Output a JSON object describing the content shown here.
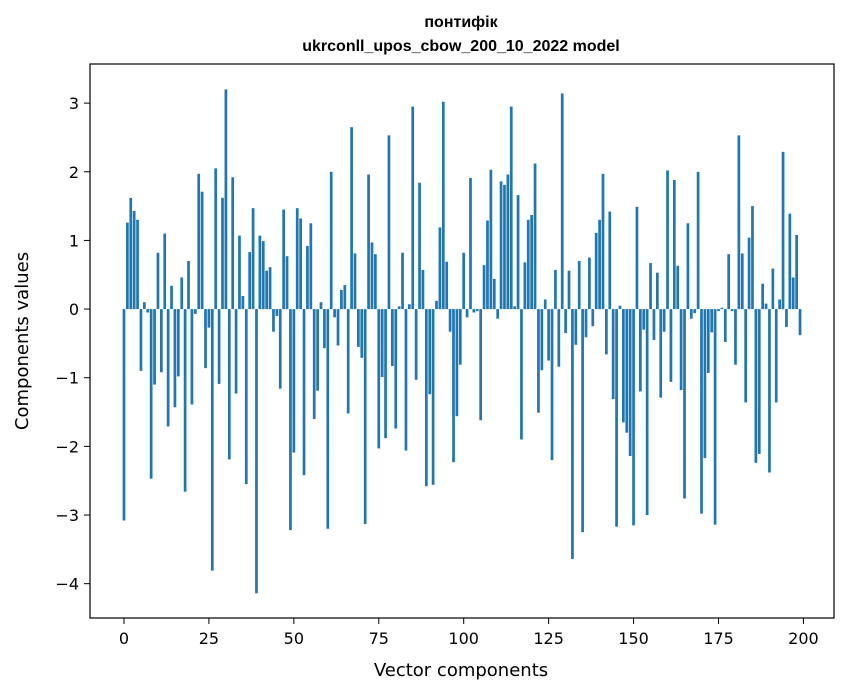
{
  "chart_data": {
    "type": "bar",
    "title": "понтифік",
    "subtitle": "ukrconll_upos_cbow_200_10_2022 model",
    "xlabel": "Vector components",
    "ylabel": "Components values",
    "xlim": [
      -10,
      209
    ],
    "ylim": [
      -4.5,
      3.57
    ],
    "xticks": [
      0,
      25,
      50,
      75,
      100,
      125,
      150,
      175,
      200
    ],
    "yticks": [
      -4,
      -3,
      -2,
      -1,
      0,
      1,
      2,
      3
    ],
    "bar_color": "#1f77b4",
    "grid": false,
    "legend": "none",
    "x": [
      0,
      1,
      2,
      3,
      4,
      5,
      6,
      7,
      8,
      9,
      10,
      11,
      12,
      13,
      14,
      15,
      16,
      17,
      18,
      19,
      20,
      21,
      22,
      23,
      24,
      25,
      26,
      27,
      28,
      29,
      30,
      31,
      32,
      33,
      34,
      35,
      36,
      37,
      38,
      39,
      40,
      41,
      42,
      43,
      44,
      45,
      46,
      47,
      48,
      49,
      50,
      51,
      52,
      53,
      54,
      55,
      56,
      57,
      58,
      59,
      60,
      61,
      62,
      63,
      64,
      65,
      66,
      67,
      68,
      69,
      70,
      71,
      72,
      73,
      74,
      75,
      76,
      77,
      78,
      79,
      80,
      81,
      82,
      83,
      84,
      85,
      86,
      87,
      88,
      89,
      90,
      91,
      92,
      93,
      94,
      95,
      96,
      97,
      98,
      99,
      100,
      101,
      102,
      103,
      104,
      105,
      106,
      107,
      108,
      109,
      110,
      111,
      112,
      113,
      114,
      115,
      116,
      117,
      118,
      119,
      120,
      121,
      122,
      123,
      124,
      125,
      126,
      127,
      128,
      129,
      130,
      131,
      132,
      133,
      134,
      135,
      136,
      137,
      138,
      139,
      140,
      141,
      142,
      143,
      144,
      145,
      146,
      147,
      148,
      149,
      150,
      151,
      152,
      153,
      154,
      155,
      156,
      157,
      158,
      159,
      160,
      161,
      162,
      163,
      164,
      165,
      166,
      167,
      168,
      169,
      170,
      171,
      172,
      173,
      174,
      175,
      176,
      177,
      178,
      179,
      180,
      181,
      182,
      183,
      184,
      185,
      186,
      187,
      188,
      189,
      190,
      191,
      192,
      193,
      194,
      195,
      196,
      197,
      198,
      199
    ],
    "values": [
      -3.08,
      1.26,
      1.62,
      1.43,
      1.3,
      -0.9,
      0.1,
      -0.05,
      -2.47,
      -1.1,
      0.82,
      -0.92,
      1.1,
      -1.71,
      0.34,
      -1.43,
      -0.98,
      0.46,
      -2.66,
      0.7,
      -1.39,
      -0.07,
      1.97,
      1.71,
      -0.86,
      -0.27,
      -3.81,
      2.05,
      -1.09,
      1.62,
      3.2,
      -2.19,
      1.92,
      -1.23,
      1.07,
      0.19,
      -2.55,
      0.83,
      1.47,
      -4.14,
      1.07,
      0.99,
      0.56,
      0.61,
      -0.33,
      -0.1,
      -1.16,
      1.45,
      0.77,
      -3.22,
      -2.09,
      1.47,
      1.32,
      -2.42,
      0.92,
      1.25,
      -1.6,
      -1.19,
      0.1,
      -0.57,
      -3.2,
      2.0,
      -0.12,
      -0.53,
      0.28,
      0.35,
      -1.52,
      2.65,
      0.81,
      -0.55,
      -0.71,
      -3.13,
      1.96,
      0.97,
      0.8,
      -2.03,
      -0.99,
      -1.88,
      2.53,
      -0.83,
      -1.74,
      0.04,
      0.82,
      -2.06,
      0.07,
      2.95,
      -1.03,
      1.84,
      0.57,
      -2.58,
      -1.24,
      -2.56,
      0.12,
      1.19,
      3.02,
      0.69,
      -0.33,
      -2.23,
      -1.56,
      -0.81,
      0.82,
      -0.12,
      1.91,
      -0.05,
      -0.03,
      -1.62,
      0.64,
      1.29,
      2.03,
      0.44,
      -0.14,
      1.86,
      1.81,
      1.96,
      2.95,
      0.04,
      1.66,
      -1.9,
      0.68,
      1.3,
      1.37,
      2.12,
      -1.51,
      -0.89,
      0.14,
      -0.75,
      -2.2,
      0.57,
      -0.84,
      3.14,
      -0.35,
      0.56,
      -3.64,
      -0.52,
      0.7,
      -3.25,
      -0.41,
      0.75,
      -0.25,
      1.11,
      1.3,
      1.97,
      -0.66,
      1.42,
      -1.31,
      -3.17,
      0.05,
      -1.65,
      -1.8,
      -2.14,
      -3.15,
      1.49,
      -1.2,
      -0.3,
      -3.0,
      0.67,
      -0.45,
      0.53,
      -1.29,
      -0.33,
      2.02,
      -1.06,
      1.88,
      0.63,
      -1.18,
      -2.76,
      1.25,
      -0.14,
      -0.06,
      2.0,
      -2.98,
      -2.17,
      -0.93,
      -0.34,
      -3.14,
      -0.03,
      0.02,
      -0.48,
      0.8,
      -0.03,
      -0.81,
      2.53,
      0.81,
      -1.36,
      1.04,
      1.5,
      -2.24,
      -2.11,
      0.37,
      0.08,
      -2.38,
      0.59,
      -1.36,
      0.14,
      2.29,
      -0.26,
      1.39,
      0.46,
      1.08,
      -0.38
    ]
  }
}
